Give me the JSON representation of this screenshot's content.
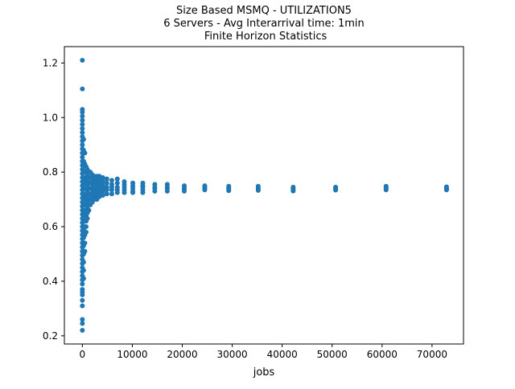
{
  "chart_data": {
    "type": "scatter",
    "title_lines": [
      "Size Based MSMQ - UTILIZATION5",
      "6 Servers -  Avg Interarrival time: 1min",
      " Finite Horizon Statistics"
    ],
    "xlabel": "jobs",
    "ylabel": "",
    "xlim": [
      -3600,
      76300
    ],
    "ylim": [
      0.17,
      1.26
    ],
    "x_ticks": [
      0,
      10000,
      20000,
      30000,
      40000,
      50000,
      60000,
      70000
    ],
    "x_tick_labels": [
      "0",
      "10000",
      "20000",
      "30000",
      "40000",
      "50000",
      "60000",
      "70000"
    ],
    "y_ticks": [
      0.2,
      0.4,
      0.6,
      0.8,
      1.0,
      1.2
    ],
    "y_tick_labels": [
      "0.2",
      "0.4",
      "0.6",
      "0.8",
      "1.0",
      "1.2"
    ],
    "grid": false,
    "legend": "none",
    "marker_color": "#1f77b4",
    "series": [
      {
        "points": [
          [
            0,
            1.21
          ],
          [
            0,
            1.105
          ],
          [
            0,
            1.03
          ],
          [
            0,
            1.02
          ],
          [
            0,
            1.005
          ],
          [
            0,
            0.99
          ],
          [
            0,
            0.975
          ],
          [
            0,
            0.96
          ],
          [
            0,
            0.945
          ],
          [
            0,
            0.93
          ],
          [
            0,
            0.915
          ],
          [
            0,
            0.9
          ],
          [
            0,
            0.885
          ],
          [
            0,
            0.87
          ],
          [
            0,
            0.855
          ],
          [
            0,
            0.84
          ],
          [
            0,
            0.825
          ],
          [
            0,
            0.81
          ],
          [
            0,
            0.795
          ],
          [
            0,
            0.78
          ],
          [
            0,
            0.765
          ],
          [
            0,
            0.75
          ],
          [
            0,
            0.735
          ],
          [
            0,
            0.72
          ],
          [
            0,
            0.705
          ],
          [
            0,
            0.69
          ],
          [
            0,
            0.675
          ],
          [
            0,
            0.66
          ],
          [
            0,
            0.645
          ],
          [
            0,
            0.63
          ],
          [
            0,
            0.615
          ],
          [
            0,
            0.6
          ],
          [
            0,
            0.585
          ],
          [
            0,
            0.57
          ],
          [
            0,
            0.555
          ],
          [
            0,
            0.54
          ],
          [
            0,
            0.525
          ],
          [
            0,
            0.51
          ],
          [
            0,
            0.495
          ],
          [
            0,
            0.48
          ],
          [
            0,
            0.465
          ],
          [
            0,
            0.45
          ],
          [
            0,
            0.435
          ],
          [
            0,
            0.42
          ],
          [
            0,
            0.405
          ],
          [
            0,
            0.39
          ],
          [
            0,
            0.37
          ],
          [
            0,
            0.36
          ],
          [
            0,
            0.35
          ],
          [
            0,
            0.33
          ],
          [
            0,
            0.31
          ],
          [
            0,
            0.26
          ],
          [
            0,
            0.245
          ],
          [
            0,
            0.22
          ],
          [
            250,
            0.92
          ],
          [
            250,
            0.88
          ],
          [
            250,
            0.84
          ],
          [
            250,
            0.8
          ],
          [
            250,
            0.77
          ],
          [
            250,
            0.74
          ],
          [
            250,
            0.71
          ],
          [
            250,
            0.68
          ],
          [
            250,
            0.65
          ],
          [
            250,
            0.62
          ],
          [
            250,
            0.59
          ],
          [
            250,
            0.56
          ],
          [
            250,
            0.53
          ],
          [
            250,
            0.5
          ],
          [
            250,
            0.47
          ],
          [
            250,
            0.44
          ],
          [
            250,
            0.41
          ],
          [
            500,
            0.87
          ],
          [
            500,
            0.83
          ],
          [
            500,
            0.8
          ],
          [
            500,
            0.78
          ],
          [
            500,
            0.76
          ],
          [
            500,
            0.74
          ],
          [
            500,
            0.72
          ],
          [
            500,
            0.7
          ],
          [
            500,
            0.68
          ],
          [
            500,
            0.66
          ],
          [
            500,
            0.64
          ],
          [
            500,
            0.62
          ],
          [
            500,
            0.6
          ],
          [
            500,
            0.57
          ],
          [
            500,
            0.54
          ],
          [
            500,
            0.51
          ],
          [
            750,
            0.82
          ],
          [
            750,
            0.8
          ],
          [
            750,
            0.78
          ],
          [
            750,
            0.76
          ],
          [
            750,
            0.74
          ],
          [
            750,
            0.72
          ],
          [
            750,
            0.7
          ],
          [
            750,
            0.68
          ],
          [
            750,
            0.66
          ],
          [
            750,
            0.64
          ],
          [
            750,
            0.62
          ],
          [
            750,
            0.6
          ],
          [
            750,
            0.58
          ],
          [
            1000,
            0.81
          ],
          [
            1000,
            0.79
          ],
          [
            1000,
            0.77
          ],
          [
            1000,
            0.75
          ],
          [
            1000,
            0.73
          ],
          [
            1000,
            0.71
          ],
          [
            1000,
            0.69
          ],
          [
            1000,
            0.67
          ],
          [
            1000,
            0.65
          ],
          [
            1000,
            0.63
          ],
          [
            1300,
            0.8
          ],
          [
            1300,
            0.78
          ],
          [
            1300,
            0.76
          ],
          [
            1300,
            0.74
          ],
          [
            1300,
            0.72
          ],
          [
            1300,
            0.7
          ],
          [
            1300,
            0.68
          ],
          [
            1300,
            0.66
          ],
          [
            1600,
            0.8
          ],
          [
            1600,
            0.78
          ],
          [
            1600,
            0.76
          ],
          [
            1600,
            0.74
          ],
          [
            1600,
            0.72
          ],
          [
            1600,
            0.7
          ],
          [
            1600,
            0.68
          ],
          [
            2000,
            0.79
          ],
          [
            2000,
            0.77
          ],
          [
            2000,
            0.755
          ],
          [
            2000,
            0.74
          ],
          [
            2000,
            0.725
          ],
          [
            2000,
            0.71
          ],
          [
            2000,
            0.69
          ],
          [
            2400,
            0.785
          ],
          [
            2400,
            0.77
          ],
          [
            2400,
            0.755
          ],
          [
            2400,
            0.74
          ],
          [
            2400,
            0.725
          ],
          [
            2400,
            0.71
          ],
          [
            2400,
            0.7
          ],
          [
            2900,
            0.785
          ],
          [
            2900,
            0.77
          ],
          [
            2900,
            0.755
          ],
          [
            2900,
            0.74
          ],
          [
            2900,
            0.725
          ],
          [
            2900,
            0.71
          ],
          [
            2900,
            0.7
          ],
          [
            3400,
            0.785
          ],
          [
            3400,
            0.77
          ],
          [
            3400,
            0.755
          ],
          [
            3400,
            0.74
          ],
          [
            3400,
            0.725
          ],
          [
            3400,
            0.71
          ],
          [
            4100,
            0.78
          ],
          [
            4100,
            0.765
          ],
          [
            4100,
            0.75
          ],
          [
            4100,
            0.74
          ],
          [
            4100,
            0.73
          ],
          [
            4100,
            0.715
          ],
          [
            4900,
            0.775
          ],
          [
            4900,
            0.76
          ],
          [
            4900,
            0.745
          ],
          [
            4900,
            0.735
          ],
          [
            4900,
            0.72
          ],
          [
            5900,
            0.77
          ],
          [
            5900,
            0.755
          ],
          [
            5900,
            0.745
          ],
          [
            5900,
            0.735
          ],
          [
            5900,
            0.72
          ],
          [
            7000,
            0.775
          ],
          [
            7000,
            0.76
          ],
          [
            7000,
            0.745
          ],
          [
            7000,
            0.735
          ],
          [
            7000,
            0.725
          ],
          [
            8400,
            0.765
          ],
          [
            8400,
            0.755
          ],
          [
            8400,
            0.745
          ],
          [
            8400,
            0.735
          ],
          [
            8400,
            0.725
          ],
          [
            10100,
            0.76
          ],
          [
            10100,
            0.75
          ],
          [
            10100,
            0.74
          ],
          [
            10100,
            0.73
          ],
          [
            10100,
            0.725
          ],
          [
            12100,
            0.76
          ],
          [
            12100,
            0.75
          ],
          [
            12100,
            0.745
          ],
          [
            12100,
            0.735
          ],
          [
            12100,
            0.725
          ],
          [
            14500,
            0.755
          ],
          [
            14500,
            0.745
          ],
          [
            14500,
            0.74
          ],
          [
            14500,
            0.73
          ],
          [
            17000,
            0.755
          ],
          [
            17000,
            0.745
          ],
          [
            17000,
            0.74
          ],
          [
            17000,
            0.73
          ],
          [
            20400,
            0.75
          ],
          [
            20400,
            0.743
          ],
          [
            20400,
            0.737
          ],
          [
            20400,
            0.73
          ],
          [
            24500,
            0.75
          ],
          [
            24500,
            0.745
          ],
          [
            24500,
            0.74
          ],
          [
            24500,
            0.735
          ],
          [
            29300,
            0.748
          ],
          [
            29300,
            0.742
          ],
          [
            29300,
            0.737
          ],
          [
            29300,
            0.732
          ],
          [
            35200,
            0.748
          ],
          [
            35200,
            0.742
          ],
          [
            35200,
            0.737
          ],
          [
            35200,
            0.733
          ],
          [
            42200,
            0.745
          ],
          [
            42200,
            0.74
          ],
          [
            42200,
            0.736
          ],
          [
            42200,
            0.731
          ],
          [
            50700,
            0.745
          ],
          [
            50700,
            0.741
          ],
          [
            50700,
            0.737
          ],
          [
            50700,
            0.734
          ],
          [
            60800,
            0.748
          ],
          [
            60800,
            0.743
          ],
          [
            60800,
            0.739
          ],
          [
            60800,
            0.735
          ],
          [
            72900,
            0.746
          ],
          [
            72900,
            0.742
          ],
          [
            72900,
            0.738
          ],
          [
            72900,
            0.735
          ]
        ]
      }
    ]
  }
}
